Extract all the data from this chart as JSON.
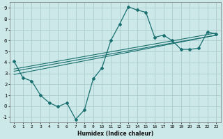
{
  "title": "",
  "xlabel": "Humidex (Indice chaleur)",
  "ylabel": "",
  "bg_color": "#cce8e8",
  "grid_color": "#aacccc",
  "line_color": "#1a7070",
  "xlim": [
    -0.5,
    23.5
  ],
  "ylim": [
    -1.5,
    9.5
  ],
  "xticks": [
    0,
    1,
    2,
    3,
    4,
    5,
    6,
    7,
    8,
    9,
    10,
    11,
    12,
    13,
    14,
    15,
    16,
    17,
    18,
    19,
    20,
    21,
    22,
    23
  ],
  "yticks": [
    -1,
    0,
    1,
    2,
    3,
    4,
    5,
    6,
    7,
    8,
    9
  ],
  "main_series": {
    "x": [
      0,
      1,
      2,
      3,
      4,
      5,
      6,
      7,
      8,
      9,
      10,
      11,
      12,
      13,
      14,
      15,
      16,
      17,
      18,
      19,
      20,
      21,
      22,
      23
    ],
    "y": [
      4.1,
      2.6,
      2.3,
      1.0,
      0.3,
      -0.05,
      0.3,
      -1.2,
      -0.35,
      2.5,
      3.5,
      6.0,
      7.5,
      9.1,
      8.8,
      8.6,
      6.3,
      6.5,
      6.0,
      5.2,
      5.2,
      5.3,
      6.8,
      6.6
    ]
  },
  "line1": {
    "x": [
      0,
      23
    ],
    "y": [
      3.4,
      6.7
    ]
  },
  "line2": {
    "x": [
      0,
      23
    ],
    "y": [
      3.2,
      6.5
    ]
  },
  "line3": {
    "x": [
      0,
      23
    ],
    "y": [
      2.9,
      6.5
    ]
  }
}
